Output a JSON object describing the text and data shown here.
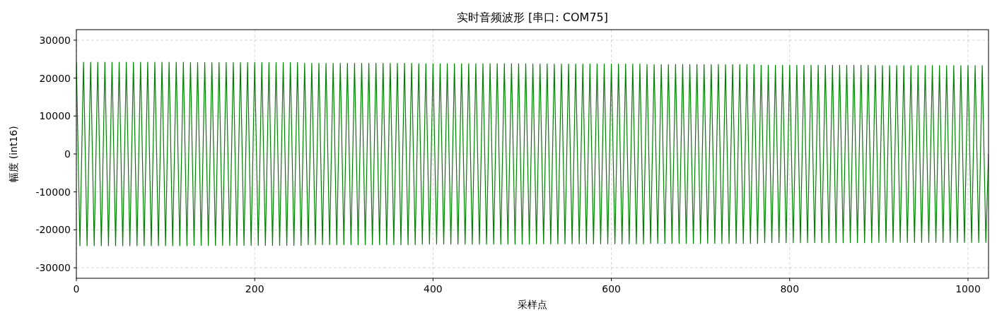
{
  "chart_data": {
    "type": "line",
    "title": "实时音频波形 [串口: COM75]",
    "xlabel": "采样点",
    "ylabel": "幅度 (int16)",
    "xlim": [
      0,
      1023
    ],
    "xticks": [
      0,
      200,
      400,
      600,
      800,
      1000
    ],
    "ylim": [
      -32768,
      32767
    ],
    "yticks": [
      -30000,
      -20000,
      -10000,
      0,
      10000,
      20000,
      30000
    ],
    "grid": true,
    "marker": "none",
    "line_style": "solid",
    "x": [
      0,
      4,
      8,
      12,
      16,
      20,
      24,
      28,
      32,
      36,
      40,
      44,
      48,
      52,
      56,
      60,
      64,
      68,
      72,
      76,
      80,
      84,
      88,
      92,
      96,
      100,
      104,
      108,
      112,
      116,
      120,
      124,
      128,
      132,
      136,
      140,
      144,
      148,
      152,
      156,
      160,
      164,
      168,
      172,
      176,
      180,
      184,
      188,
      192,
      196,
      200,
      204,
      208,
      212,
      216,
      220,
      224,
      228,
      232,
      236,
      240,
      244,
      248,
      252,
      256,
      260,
      264,
      268,
      272,
      276,
      280,
      284,
      288,
      292,
      296,
      300,
      304,
      308,
      312,
      316,
      320,
      324,
      328,
      332,
      336,
      340,
      344,
      348,
      352,
      356,
      360,
      364,
      368,
      372,
      376,
      380,
      384,
      388,
      392,
      396,
      400,
      404,
      408,
      412,
      416,
      420,
      424,
      428,
      432,
      436,
      440,
      444,
      448,
      452,
      456,
      460,
      464,
      468,
      472,
      476,
      480,
      484,
      488,
      492,
      496,
      500,
      504,
      508,
      512,
      516,
      520,
      524,
      528,
      532,
      536,
      540,
      544,
      548,
      552,
      556,
      560,
      564,
      568,
      572,
      576,
      580,
      584,
      588,
      592,
      596,
      600,
      604,
      608,
      612,
      616,
      620,
      624,
      628,
      632,
      636,
      640,
      644,
      648,
      652,
      656,
      660,
      664,
      668,
      672,
      676,
      680,
      684,
      688,
      692,
      696,
      700,
      704,
      708,
      712,
      716,
      720,
      724,
      728,
      732,
      736,
      740,
      744,
      748,
      752,
      756,
      760,
      764,
      768,
      772,
      776,
      780,
      784,
      788,
      792,
      796,
      800,
      804,
      808,
      812,
      816,
      820,
      824,
      828,
      832,
      836,
      840,
      844,
      848,
      852,
      856,
      860,
      864,
      868,
      872,
      876,
      880,
      884,
      888,
      892,
      896,
      900,
      904,
      908,
      912,
      916,
      920,
      924,
      928,
      932,
      936,
      940,
      944,
      948,
      952,
      956,
      960,
      964,
      968,
      972,
      976,
      980,
      984,
      988,
      992,
      996,
      1000,
      1004,
      1008,
      1012,
      1016,
      1020,
      1023
    ],
    "series": [
      {
        "color": "#008000",
        "values": [
          24200,
          -24200,
          24200,
          -24200,
          24200,
          -24200,
          24200,
          -24200,
          24200,
          -24200,
          24200,
          -24200,
          24200,
          -24200,
          24200,
          -24200,
          24200,
          -24200,
          24200,
          -24200,
          24200,
          -24200,
          24200,
          -24200,
          24200,
          -24200,
          24200,
          -24200,
          24200,
          -24200,
          24200,
          -24200,
          24100,
          -24100,
          24100,
          -24100,
          24100,
          -24100,
          24100,
          -24100,
          24100,
          -24100,
          24100,
          -24100,
          24100,
          -24100,
          24100,
          -24100,
          24100,
          -24100,
          24100,
          -24100,
          24100,
          -24100,
          24100,
          -24100,
          24100,
          -24100,
          24100,
          -24100,
          24100,
          -24100,
          24100,
          -24100,
          23900,
          -23900,
          23900,
          -23900,
          23900,
          -23900,
          23900,
          -23900,
          23900,
          -23900,
          23900,
          -23900,
          23900,
          -23900,
          23900,
          -23900,
          23900,
          -23900,
          23900,
          -23900,
          23900,
          -23900,
          23900,
          -23900,
          23900,
          -23900,
          23900,
          -23900,
          23900,
          -23900,
          23900,
          -23900,
          23800,
          -23800,
          23800,
          -23800,
          23800,
          -23800,
          23800,
          -23800,
          23800,
          -23800,
          23800,
          -23800,
          23800,
          -23800,
          23800,
          -23800,
          23800,
          -23800,
          23800,
          -23800,
          23800,
          -23800,
          23800,
          -23800,
          23800,
          -23800,
          23800,
          -23800,
          23800,
          -23800,
          23800,
          -23800,
          23700,
          -23700,
          23700,
          -23700,
          23700,
          -23700,
          23700,
          -23700,
          23700,
          -23700,
          23700,
          -23700,
          23700,
          -23700,
          23700,
          -23700,
          23700,
          -23700,
          23700,
          -23700,
          23700,
          -23700,
          23700,
          -23700,
          23700,
          -23700,
          23700,
          -23700,
          23700,
          -23700,
          23700,
          -23700,
          23600,
          -23600,
          23600,
          -23600,
          23600,
          -23600,
          23600,
          -23600,
          23600,
          -23600,
          23600,
          -23600,
          23600,
          -23600,
          23600,
          -23600,
          23600,
          -23600,
          23600,
          -23600,
          23600,
          -23600,
          23600,
          -23600,
          23600,
          -23600,
          23600,
          -23600,
          23600,
          -23600,
          23600,
          -23600,
          23400,
          -23400,
          23400,
          -23400,
          23400,
          -23400,
          23400,
          -23400,
          23400,
          -23400,
          23400,
          -23400,
          23400,
          -23400,
          23400,
          -23400,
          23400,
          -23400,
          23400,
          -23400,
          23400,
          -23400,
          23400,
          -23400,
          23400,
          -23400,
          23400,
          -23400,
          23400,
          -23400,
          23400,
          -23400,
          23300,
          -23300,
          23300,
          -23300,
          23300,
          -23300,
          23300,
          -23300,
          23300,
          -23300,
          23300,
          -23300,
          23300,
          -23300,
          23300,
          -23300,
          23300,
          -23300,
          23300,
          -23300,
          23300,
          -23300,
          23300,
          -23300,
          23300,
          -23300,
          23300,
          -23300,
          23300,
          -23300,
          23300,
          -23300,
          0
        ]
      }
    ]
  }
}
